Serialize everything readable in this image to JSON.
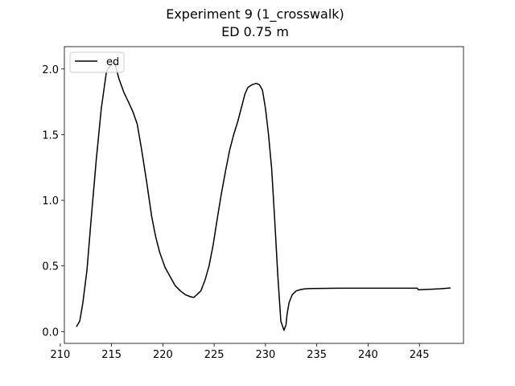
{
  "chart_data": {
    "type": "line",
    "title": "Experiment 9 (1_crosswalk)",
    "subtitle": "ED 0.75 m",
    "xlabel": "",
    "ylabel": "",
    "xlim": [
      210.4,
      249.3
    ],
    "ylim": [
      -0.09,
      2.17
    ],
    "xticks": [
      210,
      215,
      220,
      225,
      230,
      235,
      240,
      245
    ],
    "yticks": [
      0.0,
      0.5,
      1.0,
      1.5,
      2.0
    ],
    "xtick_labels": [
      "210",
      "215",
      "220",
      "225",
      "230",
      "235",
      "240",
      "245"
    ],
    "ytick_labels": [
      "0.0",
      "0.5",
      "1.0",
      "1.5",
      "2.0"
    ],
    "grid": false,
    "legend_position": "top-left",
    "series": [
      {
        "name": "ed",
        "color": "#000000",
        "x": [
          211.6,
          211.9,
          212.2,
          212.6,
          213.0,
          213.5,
          214.0,
          214.5,
          215.0,
          215.3,
          215.7,
          216.2,
          216.7,
          217.1,
          217.5,
          217.9,
          218.4,
          218.9,
          219.3,
          219.7,
          220.2,
          220.7,
          221.2,
          221.7,
          222.2,
          222.7,
          223.0,
          223.3,
          223.7,
          224.1,
          224.5,
          224.9,
          225.3,
          225.7,
          226.1,
          226.5,
          226.9,
          227.3,
          227.7,
          228.0,
          228.3,
          228.7,
          229.1,
          229.4,
          229.7,
          230.0,
          230.3,
          230.6,
          230.9,
          231.2,
          231.5,
          231.8,
          232.0,
          232.1,
          232.3,
          232.6,
          233.0,
          233.4,
          233.8,
          234.2,
          234.7,
          235.5,
          237.0,
          240.0,
          242.0,
          244.0,
          244.8,
          244.9,
          245.3,
          246.0,
          247.0,
          248.0
        ],
        "y": [
          0.04,
          0.08,
          0.22,
          0.47,
          0.85,
          1.3,
          1.7,
          1.98,
          2.04,
          2.05,
          1.93,
          1.82,
          1.74,
          1.67,
          1.58,
          1.4,
          1.15,
          0.88,
          0.72,
          0.6,
          0.49,
          0.42,
          0.35,
          0.31,
          0.28,
          0.265,
          0.26,
          0.28,
          0.31,
          0.39,
          0.5,
          0.66,
          0.86,
          1.05,
          1.22,
          1.38,
          1.5,
          1.6,
          1.72,
          1.81,
          1.86,
          1.88,
          1.89,
          1.88,
          1.84,
          1.7,
          1.5,
          1.24,
          0.85,
          0.43,
          0.08,
          0.01,
          0.05,
          0.13,
          0.22,
          0.28,
          0.31,
          0.32,
          0.325,
          0.327,
          0.328,
          0.329,
          0.33,
          0.33,
          0.33,
          0.33,
          0.33,
          0.318,
          0.32,
          0.322,
          0.326,
          0.332
        ]
      }
    ]
  }
}
